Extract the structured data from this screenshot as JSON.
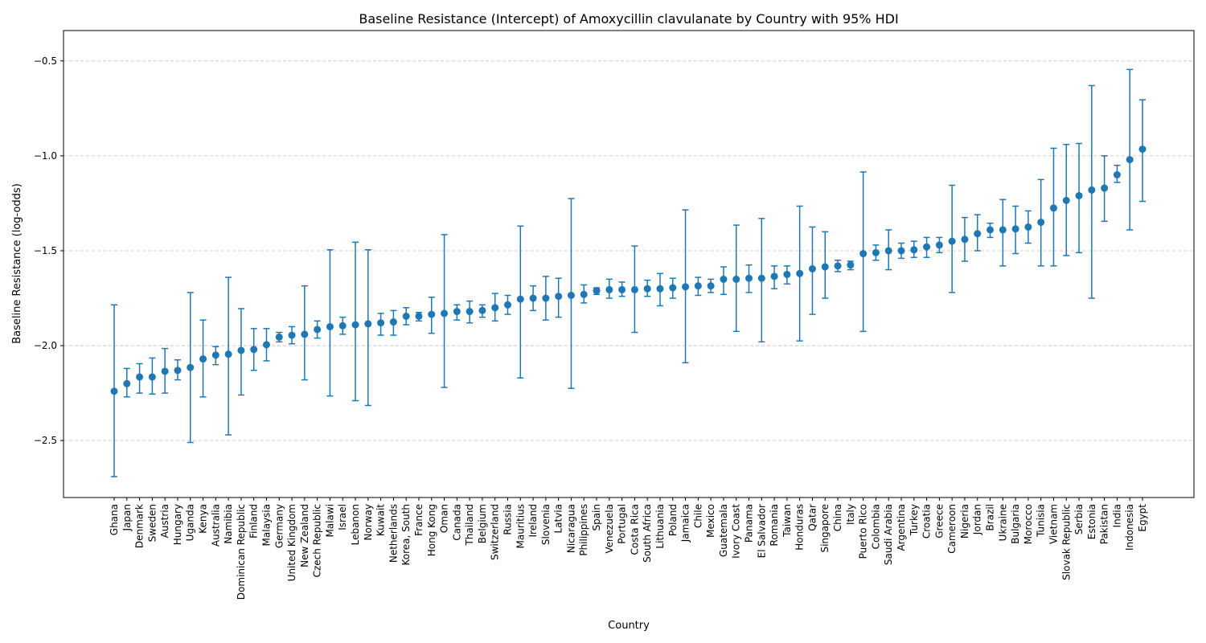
{
  "chart_data": {
    "type": "scatter",
    "title": "Baseline Resistance (Intercept) of Amoxycillin clavulanate by Country with 95% HDI",
    "xlabel": "Country",
    "ylabel": "Baseline Resistance (log-odds)",
    "ylim": [
      -2.8,
      -0.34
    ],
    "yticks": [
      -2.5,
      -2.0,
      -1.5,
      -1.0,
      -0.5
    ],
    "ytick_labels": [
      "−2.5",
      "−2.0",
      "−1.5",
      "−1.0",
      "−0.5"
    ],
    "grid": "horizontal dashed",
    "color": "#1f77b4",
    "categories": [
      "Ghana",
      "Japan",
      "Denmark",
      "Sweden",
      "Austria",
      "Hungary",
      "Uganda",
      "Kenya",
      "Australia",
      "Namibia",
      "Dominican Republic",
      "Finland",
      "Malaysia",
      "Germany",
      "United Kingdom",
      "New Zealand",
      "Czech Republic",
      "Malawi",
      "Israel",
      "Lebanon",
      "Norway",
      "Kuwait",
      "Netherlands",
      "Korea, South",
      "France",
      "Hong Kong",
      "Oman",
      "Canada",
      "Thailand",
      "Belgium",
      "Switzerland",
      "Russia",
      "Mauritius",
      "Ireland",
      "Slovenia",
      "Latvia",
      "Nicaragua",
      "Philippines",
      "Spain",
      "Venezuela",
      "Portugal",
      "Costa Rica",
      "South Africa",
      "Lithuania",
      "Poland",
      "Jamaica",
      "Chile",
      "Mexico",
      "Guatemala",
      "Ivory Coast",
      "Panama",
      "El Salvador",
      "Romania",
      "Taiwan",
      "Honduras",
      "Qatar",
      "Singapore",
      "China",
      "Italy",
      "Puerto Rico",
      "Colombia",
      "Saudi Arabia",
      "Argentina",
      "Turkey",
      "Croatia",
      "Greece",
      "Cameroon",
      "Nigeria",
      "Jordan",
      "Brazil",
      "Ukraine",
      "Bulgaria",
      "Morocco",
      "Tunisia",
      "Vietnam",
      "Slovak Republic",
      "Serbia",
      "Estonia",
      "Pakistan",
      "India",
      "Indonesia",
      "Egypt"
    ],
    "series": [
      {
        "values": [
          -2.24,
          -2.2,
          -2.165,
          -2.165,
          -2.135,
          -2.13,
          -2.115,
          -2.07,
          -2.05,
          -2.045,
          -2.025,
          -2.02,
          -1.995,
          -1.955,
          -1.945,
          -1.94,
          -1.915,
          -1.9,
          -1.895,
          -1.89,
          -1.885,
          -1.88,
          -1.875,
          -1.845,
          -1.845,
          -1.835,
          -1.83,
          -1.82,
          -1.82,
          -1.815,
          -1.8,
          -1.785,
          -1.755,
          -1.75,
          -1.75,
          -1.74,
          -1.735,
          -1.73,
          -1.71,
          -1.705,
          -1.705,
          -1.705,
          -1.7,
          -1.7,
          -1.695,
          -1.69,
          -1.685,
          -1.685,
          -1.65,
          -1.65,
          -1.645,
          -1.645,
          -1.635,
          -1.625,
          -1.62,
          -1.595,
          -1.585,
          -1.58,
          -1.575,
          -1.515,
          -1.51,
          -1.5,
          -1.5,
          -1.495,
          -1.48,
          -1.47,
          -1.45,
          -1.44,
          -1.41,
          -1.39,
          -1.39,
          -1.385,
          -1.375,
          -1.35,
          -1.275,
          -1.235,
          -1.21,
          -1.18,
          -1.17,
          -1.1,
          -1.02,
          -0.965
        ],
        "hdi_low": [
          -2.69,
          -2.27,
          -2.25,
          -2.255,
          -2.25,
          -2.18,
          -2.51,
          -2.27,
          -2.1,
          -2.47,
          -2.26,
          -2.13,
          -2.08,
          -1.98,
          -1.99,
          -2.18,
          -1.96,
          -2.265,
          -1.94,
          -2.29,
          -2.315,
          -1.945,
          -1.945,
          -1.89,
          -1.87,
          -1.935,
          -2.22,
          -1.865,
          -1.88,
          -1.85,
          -1.87,
          -1.835,
          -2.17,
          -1.815,
          -1.865,
          -1.85,
          -2.225,
          -1.775,
          -1.73,
          -1.75,
          -1.74,
          -1.93,
          -1.74,
          -1.79,
          -1.75,
          -2.09,
          -1.735,
          -1.72,
          -1.73,
          -1.925,
          -1.72,
          -1.98,
          -1.7,
          -1.675,
          -1.975,
          -1.835,
          -1.75,
          -1.61,
          -1.6,
          -1.925,
          -1.55,
          -1.6,
          -1.54,
          -1.535,
          -1.535,
          -1.51,
          -1.72,
          -1.555,
          -1.5,
          -1.43,
          -1.58,
          -1.515,
          -1.46,
          -1.58,
          -1.58,
          -1.525,
          -1.51,
          -1.75,
          -1.345,
          -1.14,
          -1.39,
          -1.24
        ],
        "hdi_high": [
          -1.785,
          -2.12,
          -2.095,
          -2.065,
          -2.015,
          -2.075,
          -1.72,
          -1.865,
          -2.005,
          -1.64,
          -1.805,
          -1.91,
          -1.91,
          -1.93,
          -1.9,
          -1.685,
          -1.87,
          -1.495,
          -1.85,
          -1.455,
          -1.495,
          -1.83,
          -1.815,
          -1.8,
          -1.825,
          -1.745,
          -1.415,
          -1.785,
          -1.765,
          -1.785,
          -1.725,
          -1.735,
          -1.37,
          -1.685,
          -1.635,
          -1.645,
          -1.225,
          -1.68,
          -1.695,
          -1.65,
          -1.665,
          -1.475,
          -1.655,
          -1.62,
          -1.645,
          -1.285,
          -1.64,
          -1.65,
          -1.585,
          -1.365,
          -1.575,
          -1.33,
          -1.58,
          -1.58,
          -1.265,
          -1.375,
          -1.4,
          -1.55,
          -1.555,
          -1.085,
          -1.47,
          -1.39,
          -1.46,
          -1.45,
          -1.43,
          -1.43,
          -1.155,
          -1.325,
          -1.31,
          -1.355,
          -1.23,
          -1.265,
          -1.29,
          -1.125,
          -0.96,
          -0.94,
          -0.935,
          -0.63,
          -1.0,
          -1.05,
          -0.545,
          -0.705
        ]
      }
    ]
  }
}
